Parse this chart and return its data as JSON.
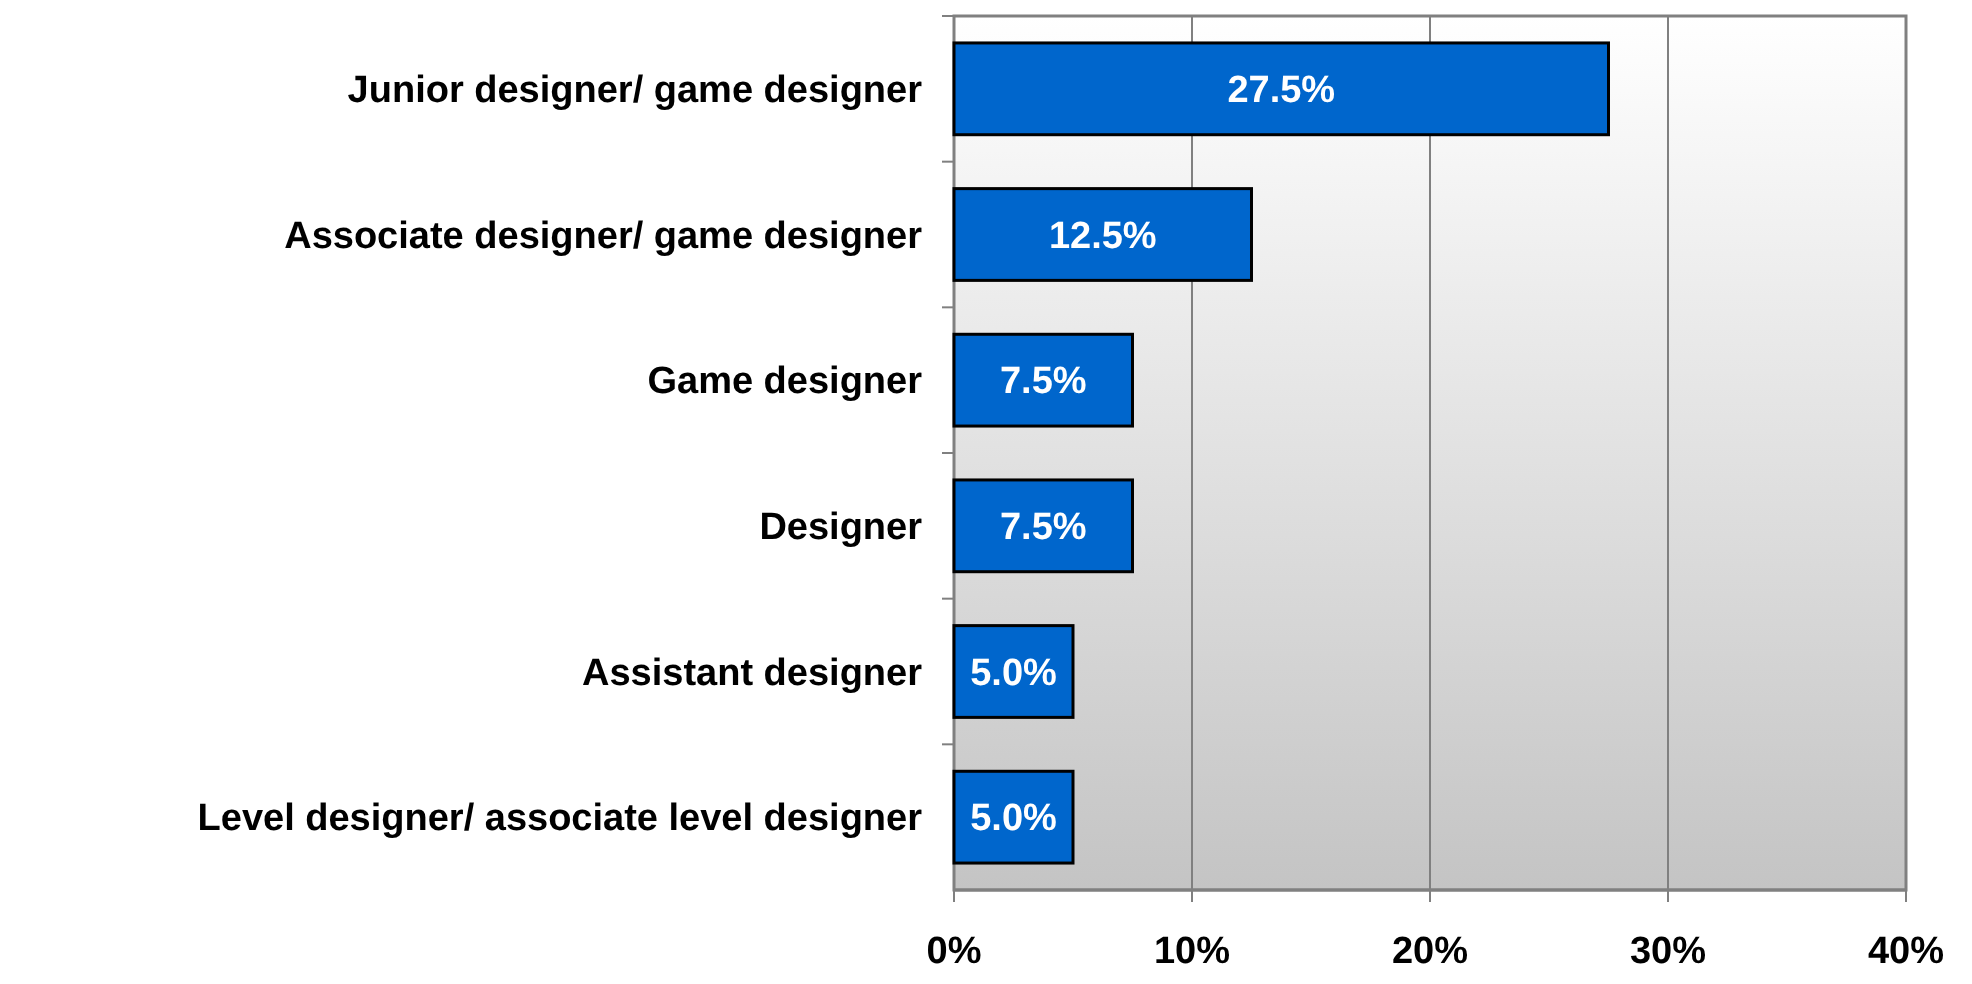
{
  "chart_data": {
    "type": "bar",
    "orientation": "horizontal",
    "categories": [
      "Junior designer/ game designer",
      "Associate designer/ game designer",
      "Game designer",
      "Designer",
      "Assistant designer",
      "Level designer/ associate level designer"
    ],
    "values": [
      27.5,
      12.5,
      7.5,
      7.5,
      5.0,
      5.0
    ],
    "value_labels": [
      "27.5%",
      "12.5%",
      "7.5%",
      "7.5%",
      "5.0%",
      "5.0%"
    ],
    "color": "#0066cc",
    "xlim": [
      0,
      40
    ],
    "xticks": [
      {
        "value": 0,
        "label": "0%"
      },
      {
        "value": 10,
        "label": "10%"
      },
      {
        "value": 20,
        "label": "20%"
      },
      {
        "value": 30,
        "label": "30%"
      },
      {
        "value": 40,
        "label": "40%"
      }
    ],
    "grid": "x"
  }
}
